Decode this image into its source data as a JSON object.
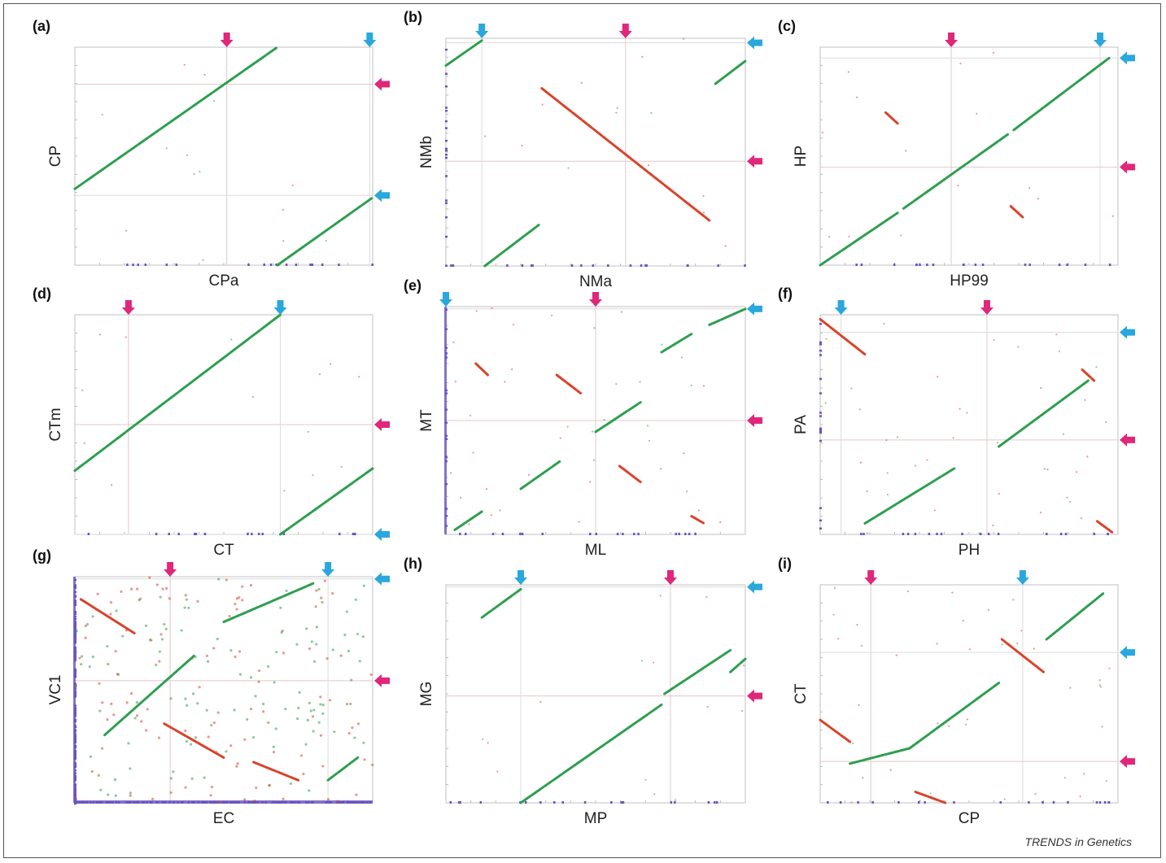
{
  "figure": {
    "credit": "TRENDS in Genetics",
    "colors": {
      "frame": "#cccccc",
      "grid": "#e2c8c8",
      "direct": "#2e9e4f",
      "inverted": "#d9432b",
      "origin_marker": "#e0277a",
      "terminus_marker": "#2aa8dd",
      "edge_ticks": "#6a54c0"
    },
    "icons": [
      "origin-arrow-icon",
      "terminus-arrow-icon"
    ],
    "panels": [
      {
        "id": "a",
        "letter": "(a)",
        "xlabel": "CPa",
        "ylabel": "CP",
        "segments": [
          {
            "type": "direct",
            "points": [
              [
                0.0,
                0.35
              ],
              [
                0.68,
                1.0
              ]
            ]
          },
          {
            "type": "direct",
            "points": [
              [
                0.68,
                0.0
              ],
              [
                1.0,
                0.31
              ]
            ]
          }
        ]
      },
      {
        "id": "b",
        "letter": "(b)",
        "xlabel": "NMa",
        "ylabel": "NMb",
        "segments": [
          {
            "type": "direct",
            "points": [
              [
                0.0,
                0.88
              ],
              [
                0.12,
                0.99
              ]
            ]
          },
          {
            "type": "direct",
            "points": [
              [
                0.13,
                0.0
              ],
              [
                0.31,
                0.18
              ]
            ]
          },
          {
            "type": "inverted",
            "points": [
              [
                0.32,
                0.78
              ],
              [
                0.88,
                0.2
              ]
            ]
          },
          {
            "type": "direct",
            "points": [
              [
                0.9,
                0.8
              ],
              [
                1.0,
                0.9
              ]
            ]
          }
        ]
      },
      {
        "id": "c",
        "letter": "(c)",
        "xlabel": "HP99",
        "ylabel": "HP",
        "segments": [
          {
            "type": "direct",
            "points": [
              [
                0.0,
                0.0
              ],
              [
                0.26,
                0.24
              ]
            ]
          },
          {
            "type": "direct",
            "points": [
              [
                0.28,
                0.26
              ],
              [
                0.63,
                0.6
              ]
            ]
          },
          {
            "type": "direct",
            "points": [
              [
                0.65,
                0.62
              ],
              [
                0.97,
                0.95
              ]
            ]
          },
          {
            "type": "inverted",
            "points": [
              [
                0.22,
                0.7
              ],
              [
                0.26,
                0.65
              ]
            ]
          },
          {
            "type": "inverted",
            "points": [
              [
                0.64,
                0.27
              ],
              [
                0.68,
                0.22
              ]
            ]
          }
        ]
      },
      {
        "id": "d",
        "letter": "(d)",
        "xlabel": "CT",
        "ylabel": "CTm",
        "segments": [
          {
            "type": "direct",
            "points": [
              [
                0.0,
                0.29
              ],
              [
                0.69,
                1.0
              ]
            ]
          },
          {
            "type": "direct",
            "points": [
              [
                0.69,
                0.0
              ],
              [
                1.0,
                0.3
              ]
            ]
          }
        ]
      },
      {
        "id": "e",
        "letter": "(e)",
        "xlabel": "ML",
        "ylabel": "MT",
        "segments": [
          {
            "type": "direct",
            "points": [
              [
                0.03,
                0.02
              ],
              [
                0.12,
                0.1
              ]
            ]
          },
          {
            "type": "direct",
            "points": [
              [
                0.25,
                0.2
              ],
              [
                0.38,
                0.32
              ]
            ]
          },
          {
            "type": "direct",
            "points": [
              [
                0.5,
                0.45
              ],
              [
                0.65,
                0.58
              ]
            ]
          },
          {
            "type": "direct",
            "points": [
              [
                0.72,
                0.8
              ],
              [
                0.82,
                0.88
              ]
            ]
          },
          {
            "type": "direct",
            "points": [
              [
                0.88,
                0.92
              ],
              [
                1.0,
                0.99
              ]
            ]
          },
          {
            "type": "inverted",
            "points": [
              [
                0.1,
                0.75
              ],
              [
                0.14,
                0.7
              ]
            ]
          },
          {
            "type": "inverted",
            "points": [
              [
                0.37,
                0.7
              ],
              [
                0.45,
                0.62
              ]
            ]
          },
          {
            "type": "inverted",
            "points": [
              [
                0.58,
                0.3
              ],
              [
                0.65,
                0.23
              ]
            ]
          },
          {
            "type": "inverted",
            "points": [
              [
                0.82,
                0.08
              ],
              [
                0.86,
                0.05
              ]
            ]
          }
        ]
      },
      {
        "id": "f",
        "letter": "(f)",
        "xlabel": "PH",
        "ylabel": "PA",
        "segments": [
          {
            "type": "inverted",
            "points": [
              [
                0.0,
                0.98
              ],
              [
                0.15,
                0.82
              ]
            ]
          },
          {
            "type": "direct",
            "points": [
              [
                0.15,
                0.05
              ],
              [
                0.45,
                0.3
              ]
            ]
          },
          {
            "type": "direct",
            "points": [
              [
                0.6,
                0.4
              ],
              [
                0.9,
                0.7
              ]
            ]
          },
          {
            "type": "inverted",
            "points": [
              [
                0.88,
                0.75
              ],
              [
                0.92,
                0.7
              ]
            ]
          },
          {
            "type": "inverted",
            "points": [
              [
                0.93,
                0.06
              ],
              [
                0.98,
                0.01
              ]
            ]
          }
        ]
      },
      {
        "id": "g",
        "letter": "(g)",
        "xlabel": "EC",
        "ylabel": "VC1",
        "segments": [
          {
            "type": "inverted",
            "points": [
              [
                0.02,
                0.9
              ],
              [
                0.2,
                0.75
              ]
            ]
          },
          {
            "type": "inverted",
            "points": [
              [
                0.3,
                0.35
              ],
              [
                0.5,
                0.2
              ]
            ]
          },
          {
            "type": "inverted",
            "points": [
              [
                0.6,
                0.18
              ],
              [
                0.75,
                0.1
              ]
            ]
          },
          {
            "type": "direct",
            "points": [
              [
                0.1,
                0.3
              ],
              [
                0.4,
                0.65
              ]
            ]
          },
          {
            "type": "direct",
            "points": [
              [
                0.5,
                0.8
              ],
              [
                0.8,
                0.97
              ]
            ]
          },
          {
            "type": "direct",
            "points": [
              [
                0.85,
                0.1
              ],
              [
                0.95,
                0.2
              ]
            ]
          }
        ]
      },
      {
        "id": "h",
        "letter": "(h)",
        "xlabel": "MP",
        "ylabel": "MG",
        "segments": [
          {
            "type": "direct",
            "points": [
              [
                0.12,
                0.85
              ],
              [
                0.25,
                0.98
              ]
            ]
          },
          {
            "type": "direct",
            "points": [
              [
                0.25,
                0.0
              ],
              [
                0.72,
                0.45
              ]
            ]
          },
          {
            "type": "direct",
            "points": [
              [
                0.73,
                0.5
              ],
              [
                0.95,
                0.7
              ]
            ]
          },
          {
            "type": "direct",
            "points": [
              [
                0.95,
                0.6
              ],
              [
                1.0,
                0.66
              ]
            ]
          }
        ]
      },
      {
        "id": "i",
        "letter": "(i)",
        "xlabel": "CP",
        "ylabel": "CT",
        "segments": [
          {
            "type": "inverted",
            "points": [
              [
                0.0,
                0.38
              ],
              [
                0.1,
                0.28
              ]
            ]
          },
          {
            "type": "direct",
            "points": [
              [
                0.1,
                0.18
              ],
              [
                0.3,
                0.25
              ]
            ]
          },
          {
            "type": "direct",
            "points": [
              [
                0.3,
                0.25
              ],
              [
                0.6,
                0.55
              ]
            ]
          },
          {
            "type": "inverted",
            "points": [
              [
                0.61,
                0.75
              ],
              [
                0.75,
                0.6
              ]
            ]
          },
          {
            "type": "direct",
            "points": [
              [
                0.76,
                0.75
              ],
              [
                0.95,
                0.96
              ]
            ]
          },
          {
            "type": "inverted",
            "points": [
              [
                0.32,
                0.05
              ],
              [
                0.42,
                0.0
              ]
            ]
          }
        ]
      }
    ]
  }
}
